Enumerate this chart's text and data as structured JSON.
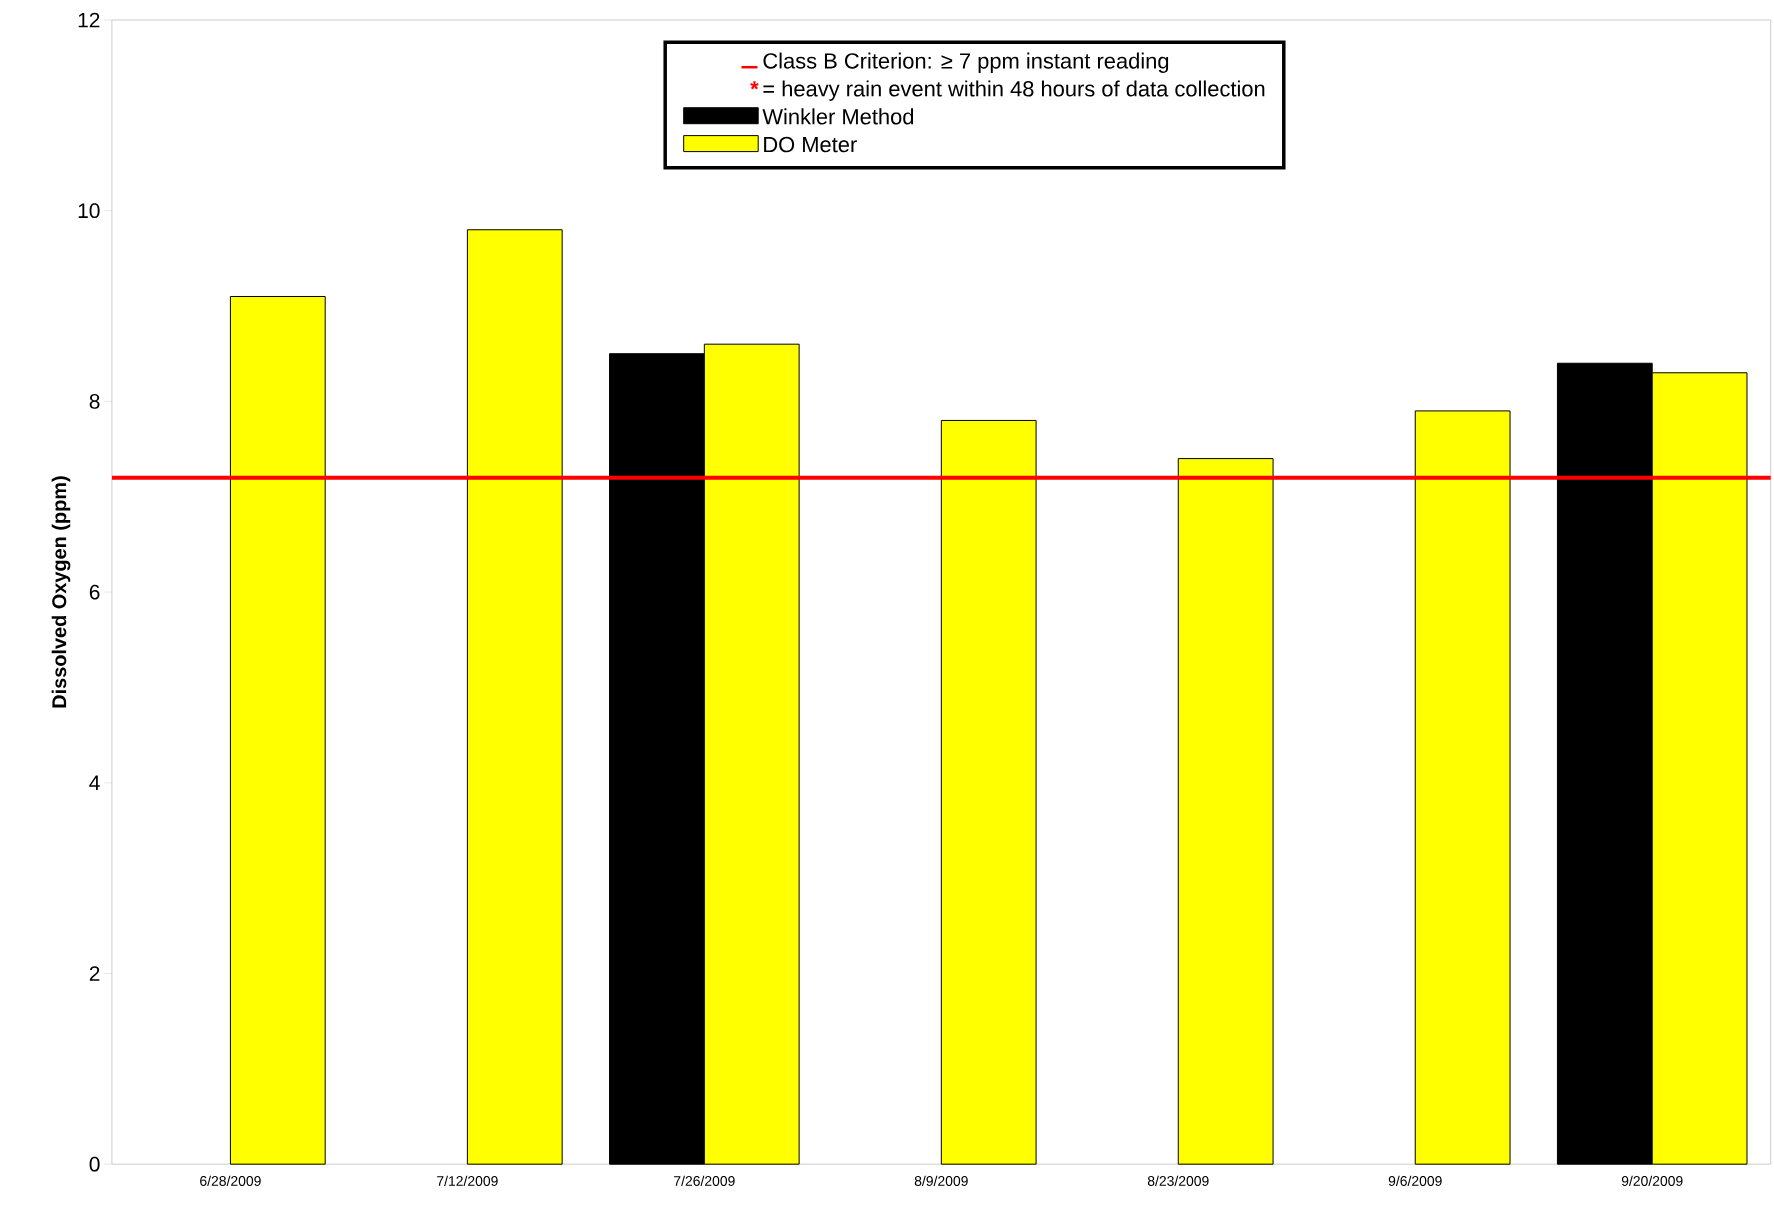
{
  "chart_data": {
    "type": "bar",
    "ylabel": "Dissolved Oxygen (ppm)",
    "categories": [
      "6/28/2009",
      "7/12/2009",
      "7/26/2009",
      "8/9/2009",
      "8/23/2009",
      "9/6/2009",
      "9/20/2009"
    ],
    "series": [
      {
        "name": "Winkler Method",
        "color": "#000000",
        "values": [
          null,
          null,
          8.5,
          null,
          null,
          null,
          8.4
        ]
      },
      {
        "name": "DO Meter",
        "color": "#ffff00",
        "values": [
          9.1,
          9.8,
          8.6,
          7.8,
          7.4,
          7.9,
          8.3
        ]
      }
    ],
    "ylim": [
      0,
      12
    ],
    "yticks": [
      0,
      2,
      4,
      6,
      8,
      10,
      12
    ],
    "ref_lines": [
      {
        "axis": "y",
        "value": 7.2,
        "label": "Class B Criterion:  ≥ 7 ppm instant reading",
        "color": "#ff0000"
      }
    ],
    "annotations": [
      "*",
      "= heavy rain event within 48 hours of data collection"
    ],
    "legend": "top",
    "grid": false
  }
}
